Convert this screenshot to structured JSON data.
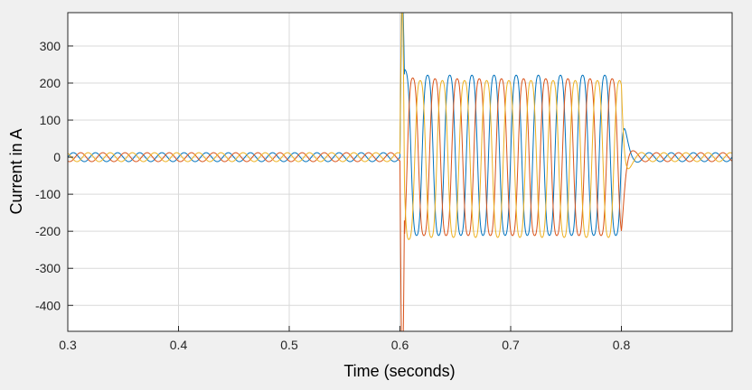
{
  "chart_data": {
    "type": "line",
    "title": "",
    "xlabel": "Time (seconds)",
    "ylabel": "Current in A",
    "xlim": [
      0.3,
      0.9
    ],
    "ylim": [
      -470,
      390
    ],
    "xticks": [
      "0.3",
      "0.4",
      "0.5",
      "0.6",
      "0.7",
      "0.8"
    ],
    "xtick_values": [
      0.3,
      0.4,
      0.5,
      0.6,
      0.7,
      0.8
    ],
    "yticks": [
      "300",
      "200",
      "100",
      "0",
      "-100",
      "-200",
      "-300",
      "-400"
    ],
    "ytick_values": [
      300,
      200,
      100,
      0,
      -100,
      -200,
      -300,
      -400
    ],
    "grid": true,
    "legend": "none",
    "frequency_hz": 50,
    "fault_interval": [
      0.6,
      0.8
    ],
    "series": [
      {
        "color": "#0072bd",
        "phase_deg": 0,
        "prefault_amplitude": 12,
        "fault_amplitude": 235,
        "fault_offset": 5,
        "transient_peak": 340,
        "postfault_amplitude": 12
      },
      {
        "color": "#d95319",
        "phase_deg": -120,
        "prefault_amplitude": 12,
        "fault_amplitude": 230,
        "fault_offset": 0,
        "transient_peak": -460,
        "postfault_amplitude": 12
      },
      {
        "color": "#edb120",
        "phase_deg": 120,
        "prefault_amplitude": 12,
        "fault_amplitude": 230,
        "fault_offset": -5,
        "transient_peak": 390,
        "postfault_amplitude": 12
      }
    ]
  }
}
